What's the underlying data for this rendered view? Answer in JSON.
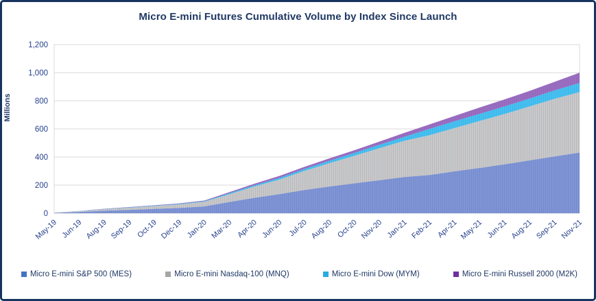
{
  "frame": {
    "border_color": "#16345f",
    "background": "#ffffff"
  },
  "colors": {
    "title_text": "#1f3864",
    "axis_text": "#26418c",
    "gridline": "#d9d9d9",
    "plot_border": "#d9d9d9",
    "baseline": "#bfbfbf"
  },
  "chart_data": {
    "type": "area",
    "stacked": true,
    "title": "Micro E-mini Futures Cumulative Volume by Index Since Launch",
    "xlabel": "",
    "ylabel": "Millions",
    "ylim": [
      0,
      1200
    ],
    "ytick_step": 200,
    "ytick_labels": [
      "0",
      "200",
      "400",
      "600",
      "800",
      "1,000",
      "1,200"
    ],
    "grid": true,
    "legend_position": "bottom",
    "categories": [
      "May-19",
      "Jun-19",
      "Aug-19",
      "Sep-19",
      "Oct-19",
      "Dec-19",
      "Jan-20",
      "Mar-20",
      "Apr-20",
      "Jun-20",
      "Jul-20",
      "Aug-20",
      "Oct-20",
      "Nov-20",
      "Jan-21",
      "Feb-21",
      "Apr-21",
      "May-21",
      "Jun-21",
      "Aug-21",
      "Sep-21",
      "Nov-21"
    ],
    "series": [
      {
        "name": "Micro E-mini S&P 500 (MES)",
        "area_color": "#7f95d6",
        "legend_color": "#4472c4",
        "values": [
          2,
          9,
          18,
          24,
          31,
          38,
          49,
          80,
          110,
          136,
          165,
          190,
          213,
          235,
          258,
          272,
          298,
          322,
          348,
          376,
          404,
          432
        ]
      },
      {
        "name": "Micro E-mini Nasdaq-100 (MNQ)",
        "area_color": "#c9c9c9",
        "legend_color": "#a6a6a6",
        "values": [
          1,
          5,
          10,
          15,
          20,
          25,
          33,
          55,
          80,
          103,
          136,
          166,
          196,
          228,
          258,
          283,
          308,
          334,
          358,
          384,
          410,
          430
        ]
      },
      {
        "name": "Micro E-mini Dow (MYM)",
        "area_color": "#45c2f2",
        "legend_color": "#29abe2",
        "values": [
          0.5,
          1,
          2,
          2.5,
          3,
          3.5,
          4,
          7,
          9,
          12,
          14,
          17,
          20,
          24,
          28,
          45,
          48,
          51,
          54,
          56,
          60,
          65
        ]
      },
      {
        "name": "Micro E-mini Russell 2000 (M2K)",
        "area_color": "#9c6ec2",
        "legend_color": "#7030a0",
        "values": [
          0.5,
          1,
          2,
          2.5,
          3,
          3.5,
          4,
          8,
          11,
          14,
          15,
          17,
          19,
          23,
          28,
          32,
          38,
          45,
          50,
          54,
          61,
          73
        ]
      }
    ]
  }
}
